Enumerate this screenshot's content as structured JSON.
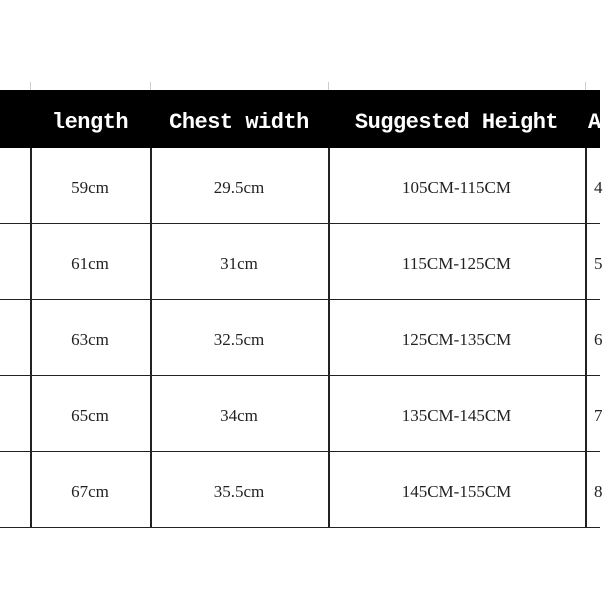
{
  "table": {
    "headers": [
      "",
      "length",
      "Chest width",
      "Suggested Height",
      "A"
    ],
    "rows": [
      [
        "",
        "59cm",
        "29.5cm",
        "105CM-115CM",
        "4"
      ],
      [
        "",
        "61cm",
        "31cm",
        "115CM-125CM",
        "5"
      ],
      [
        "",
        "63cm",
        "32.5cm",
        "125CM-135CM",
        "6"
      ],
      [
        "",
        "65cm",
        "34cm",
        "135CM-145CM",
        "7"
      ],
      [
        "",
        "67cm",
        "35.5cm",
        "145CM-155CM",
        "8"
      ]
    ]
  },
  "colors": {
    "header_bg": "#000000",
    "header_text": "#ffffff",
    "grid": "#222222"
  }
}
